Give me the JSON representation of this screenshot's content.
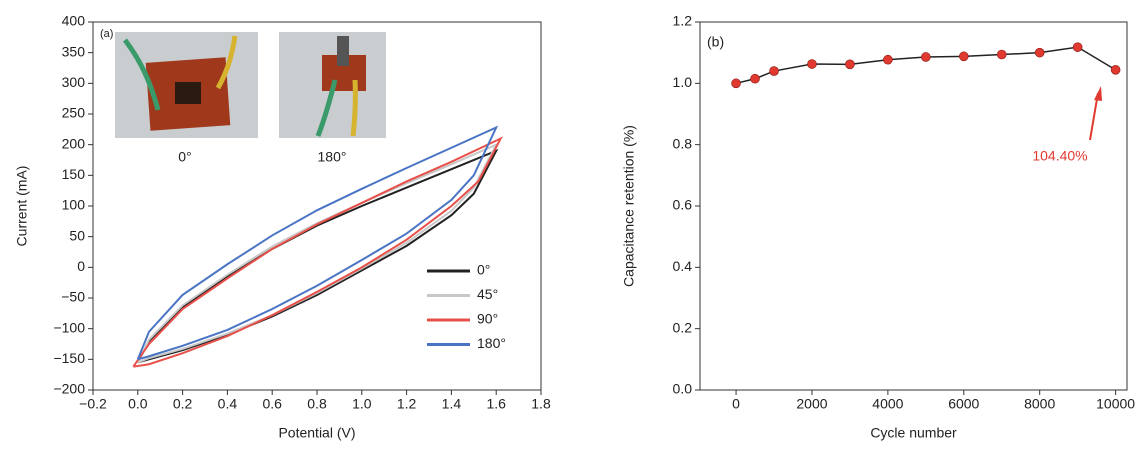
{
  "chart_data": [
    {
      "type": "line",
      "panel_label": "(a)",
      "xlabel": "Potential (V)",
      "ylabel": "Current (mA)",
      "inset_labels": [
        "0°",
        "180°"
      ],
      "xlim": [
        -0.2,
        1.8
      ],
      "xticks": [
        {
          "value": -0.2,
          "label": "−0.2"
        },
        {
          "value": 0,
          "label": "0.0"
        },
        0.2,
        0.4,
        0.6,
        0.8,
        {
          "value": 1,
          "label": "1.0"
        },
        1.2,
        1.4,
        1.6,
        1.8
      ],
      "ylim": [
        -200,
        400
      ],
      "yticks": [
        {
          "value": -200,
          "label": "−200"
        },
        {
          "value": -150,
          "label": "−150"
        },
        {
          "value": -100,
          "label": "−100"
        },
        {
          "value": -50,
          "label": "−50"
        },
        0,
        50,
        100,
        150,
        200,
        250,
        300,
        350,
        400
      ],
      "legend": "lower right",
      "series": [
        {
          "name": "0°",
          "color": "#222222",
          "x": [
            0,
            0.05,
            0.2,
            0.4,
            0.6,
            0.8,
            1.0,
            1.2,
            1.4,
            1.6,
            1.5,
            1.4,
            1.2,
            1.0,
            0.8,
            0.6,
            0.4,
            0.2,
            0.05,
            0
          ],
          "values": [
            -155,
            -120,
            -65,
            -15,
            30,
            68,
            100,
            130,
            160,
            190,
            120,
            85,
            35,
            -5,
            -45,
            -80,
            -110,
            -135,
            -150,
            -155
          ]
        },
        {
          "name": "45°",
          "color": "#c8c8c8",
          "x": [
            0,
            0.05,
            0.2,
            0.4,
            0.6,
            0.8,
            1.0,
            1.2,
            1.4,
            1.6,
            1.5,
            1.4,
            1.2,
            1.0,
            0.8,
            0.6,
            0.4,
            0.2,
            0.05,
            0
          ],
          "values": [
            -155,
            -118,
            -62,
            -12,
            34,
            72,
            105,
            137,
            168,
            200,
            130,
            92,
            40,
            -2,
            -42,
            -78,
            -108,
            -133,
            -148,
            -155
          ]
        },
        {
          "name": "90°",
          "color": "#e8504a",
          "x": [
            -0.02,
            0.05,
            0.2,
            0.4,
            0.6,
            0.8,
            1.0,
            1.2,
            1.4,
            1.62,
            1.52,
            1.4,
            1.2,
            1.0,
            0.8,
            0.6,
            0.4,
            0.2,
            0.05,
            -0.02
          ],
          "values": [
            -162,
            -125,
            -68,
            -18,
            30,
            70,
            105,
            140,
            172,
            210,
            140,
            100,
            45,
            0,
            -40,
            -78,
            -112,
            -140,
            -158,
            -162
          ]
        },
        {
          "name": "180°",
          "color": "#4a74c4",
          "x": [
            0,
            0.05,
            0.2,
            0.4,
            0.6,
            0.8,
            1.0,
            1.2,
            1.4,
            1.6,
            1.5,
            1.4,
            1.2,
            1.0,
            0.8,
            0.6,
            0.4,
            0.2,
            0.05,
            0
          ],
          "values": [
            -150,
            -105,
            -45,
            5,
            52,
            93,
            128,
            162,
            195,
            228,
            150,
            110,
            55,
            12,
            -30,
            -68,
            -102,
            -128,
            -145,
            -150
          ]
        }
      ]
    },
    {
      "type": "line",
      "panel_label": "(b)",
      "xlabel": "Cycle number",
      "ylabel": "Capacitance retention (%)",
      "xlim": [
        -950,
        10300
      ],
      "xticks": [
        0,
        2000,
        4000,
        6000,
        8000,
        10000
      ],
      "ylim": [
        0,
        1.2
      ],
      "yticks": [
        {
          "value": 0,
          "label": "0.0"
        },
        0.2,
        0.4,
        0.6,
        0.8,
        {
          "value": 1,
          "label": "1.0"
        },
        1.2
      ],
      "x": [
        0,
        500,
        1000,
        2000,
        3000,
        4000,
        5000,
        6000,
        7000,
        8000,
        9000,
        10000
      ],
      "values": [
        1.0,
        1.015,
        1.04,
        1.063,
        1.062,
        1.077,
        1.086,
        1.088,
        1.094,
        1.1,
        1.118,
        1.044
      ],
      "color": "#222222",
      "marker_color": "#e03a30",
      "annotation": "104.40%",
      "annotation_color": "#e03a30"
    }
  ]
}
